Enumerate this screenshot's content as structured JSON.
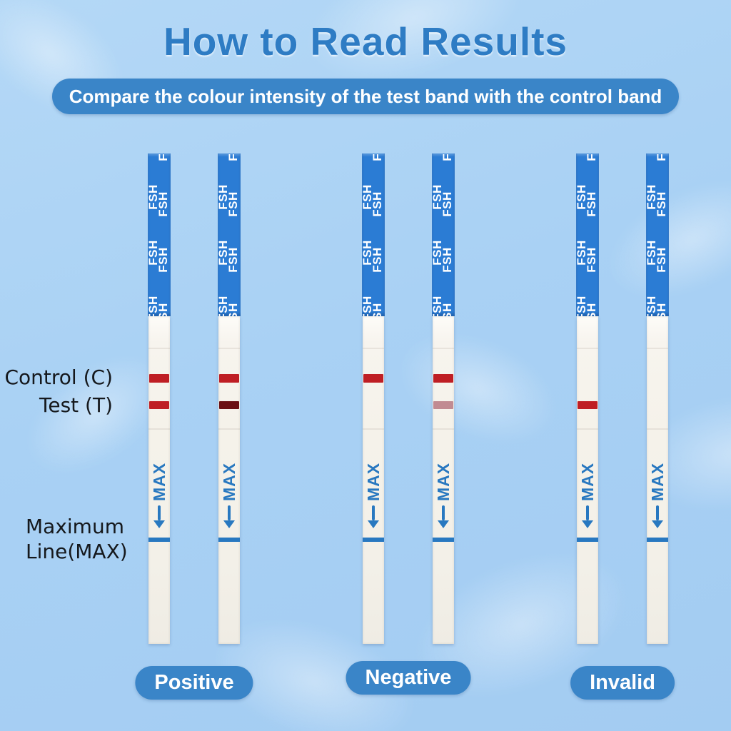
{
  "title": "How to Read Results",
  "subtitle": "Compare the colour intensity of the test band with the control band",
  "annotations": {
    "control_label": "Control  (C)",
    "test_label": "Test  (T)",
    "max_label_line1": "Maximum",
    "max_label_line2": "Line(MAX)"
  },
  "strip": {
    "handle_text": "FSH",
    "max_text": "MAX"
  },
  "colors": {
    "background": "#aad2f4",
    "title_blue": "#2e7cc4",
    "banner_blue": "#3a85c8",
    "handle_blue": "#2b7cd4",
    "strip_body": "#f5f2ea",
    "max_blue": "#2878c0",
    "band_red": "#bf1e24",
    "band_dark_red": "#6b1014",
    "band_faint_pink": "#c18b92",
    "label_black": "#15181c"
  },
  "groups": [
    {
      "label": "Positive",
      "strips": [
        {
          "control_band": "red",
          "test_band": "red"
        },
        {
          "control_band": "red",
          "test_band": "dark"
        }
      ]
    },
    {
      "label": "Negative",
      "strips": [
        {
          "control_band": "red",
          "test_band": "none"
        },
        {
          "control_band": "red",
          "test_band": "faint"
        }
      ]
    },
    {
      "label": "Invalid",
      "strips": [
        {
          "control_band": "none",
          "test_band": "red"
        },
        {
          "control_band": "none",
          "test_band": "none"
        }
      ]
    }
  ]
}
